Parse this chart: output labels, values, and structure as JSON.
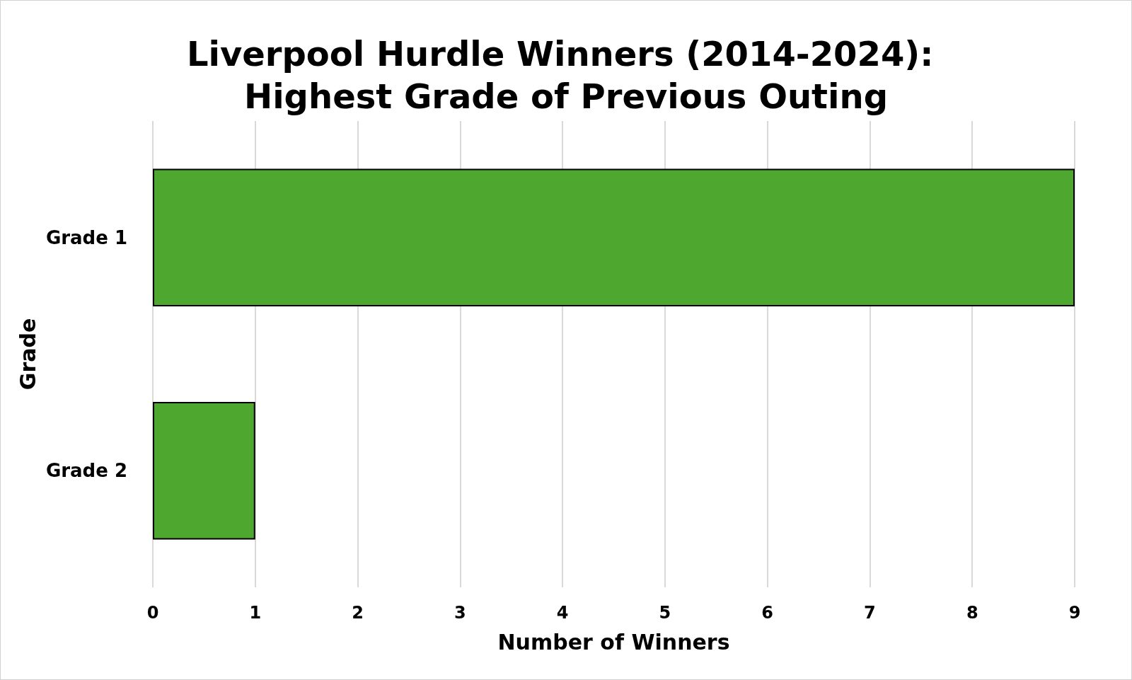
{
  "chart_data": {
    "type": "bar",
    "orientation": "horizontal",
    "title": "Liverpool Hurdle Winners (2014-2024): Highest Grade of Previous Outing",
    "xlabel": "Number of Winners",
    "ylabel": "Grade",
    "categories": [
      "Grade 1",
      "Grade 2"
    ],
    "values": [
      9,
      1
    ],
    "color": "#4ea72e",
    "xlim": [
      0,
      9
    ],
    "xticks": [
      0,
      1,
      2,
      3,
      4,
      5,
      6,
      7,
      8,
      9
    ],
    "grid": "x"
  }
}
